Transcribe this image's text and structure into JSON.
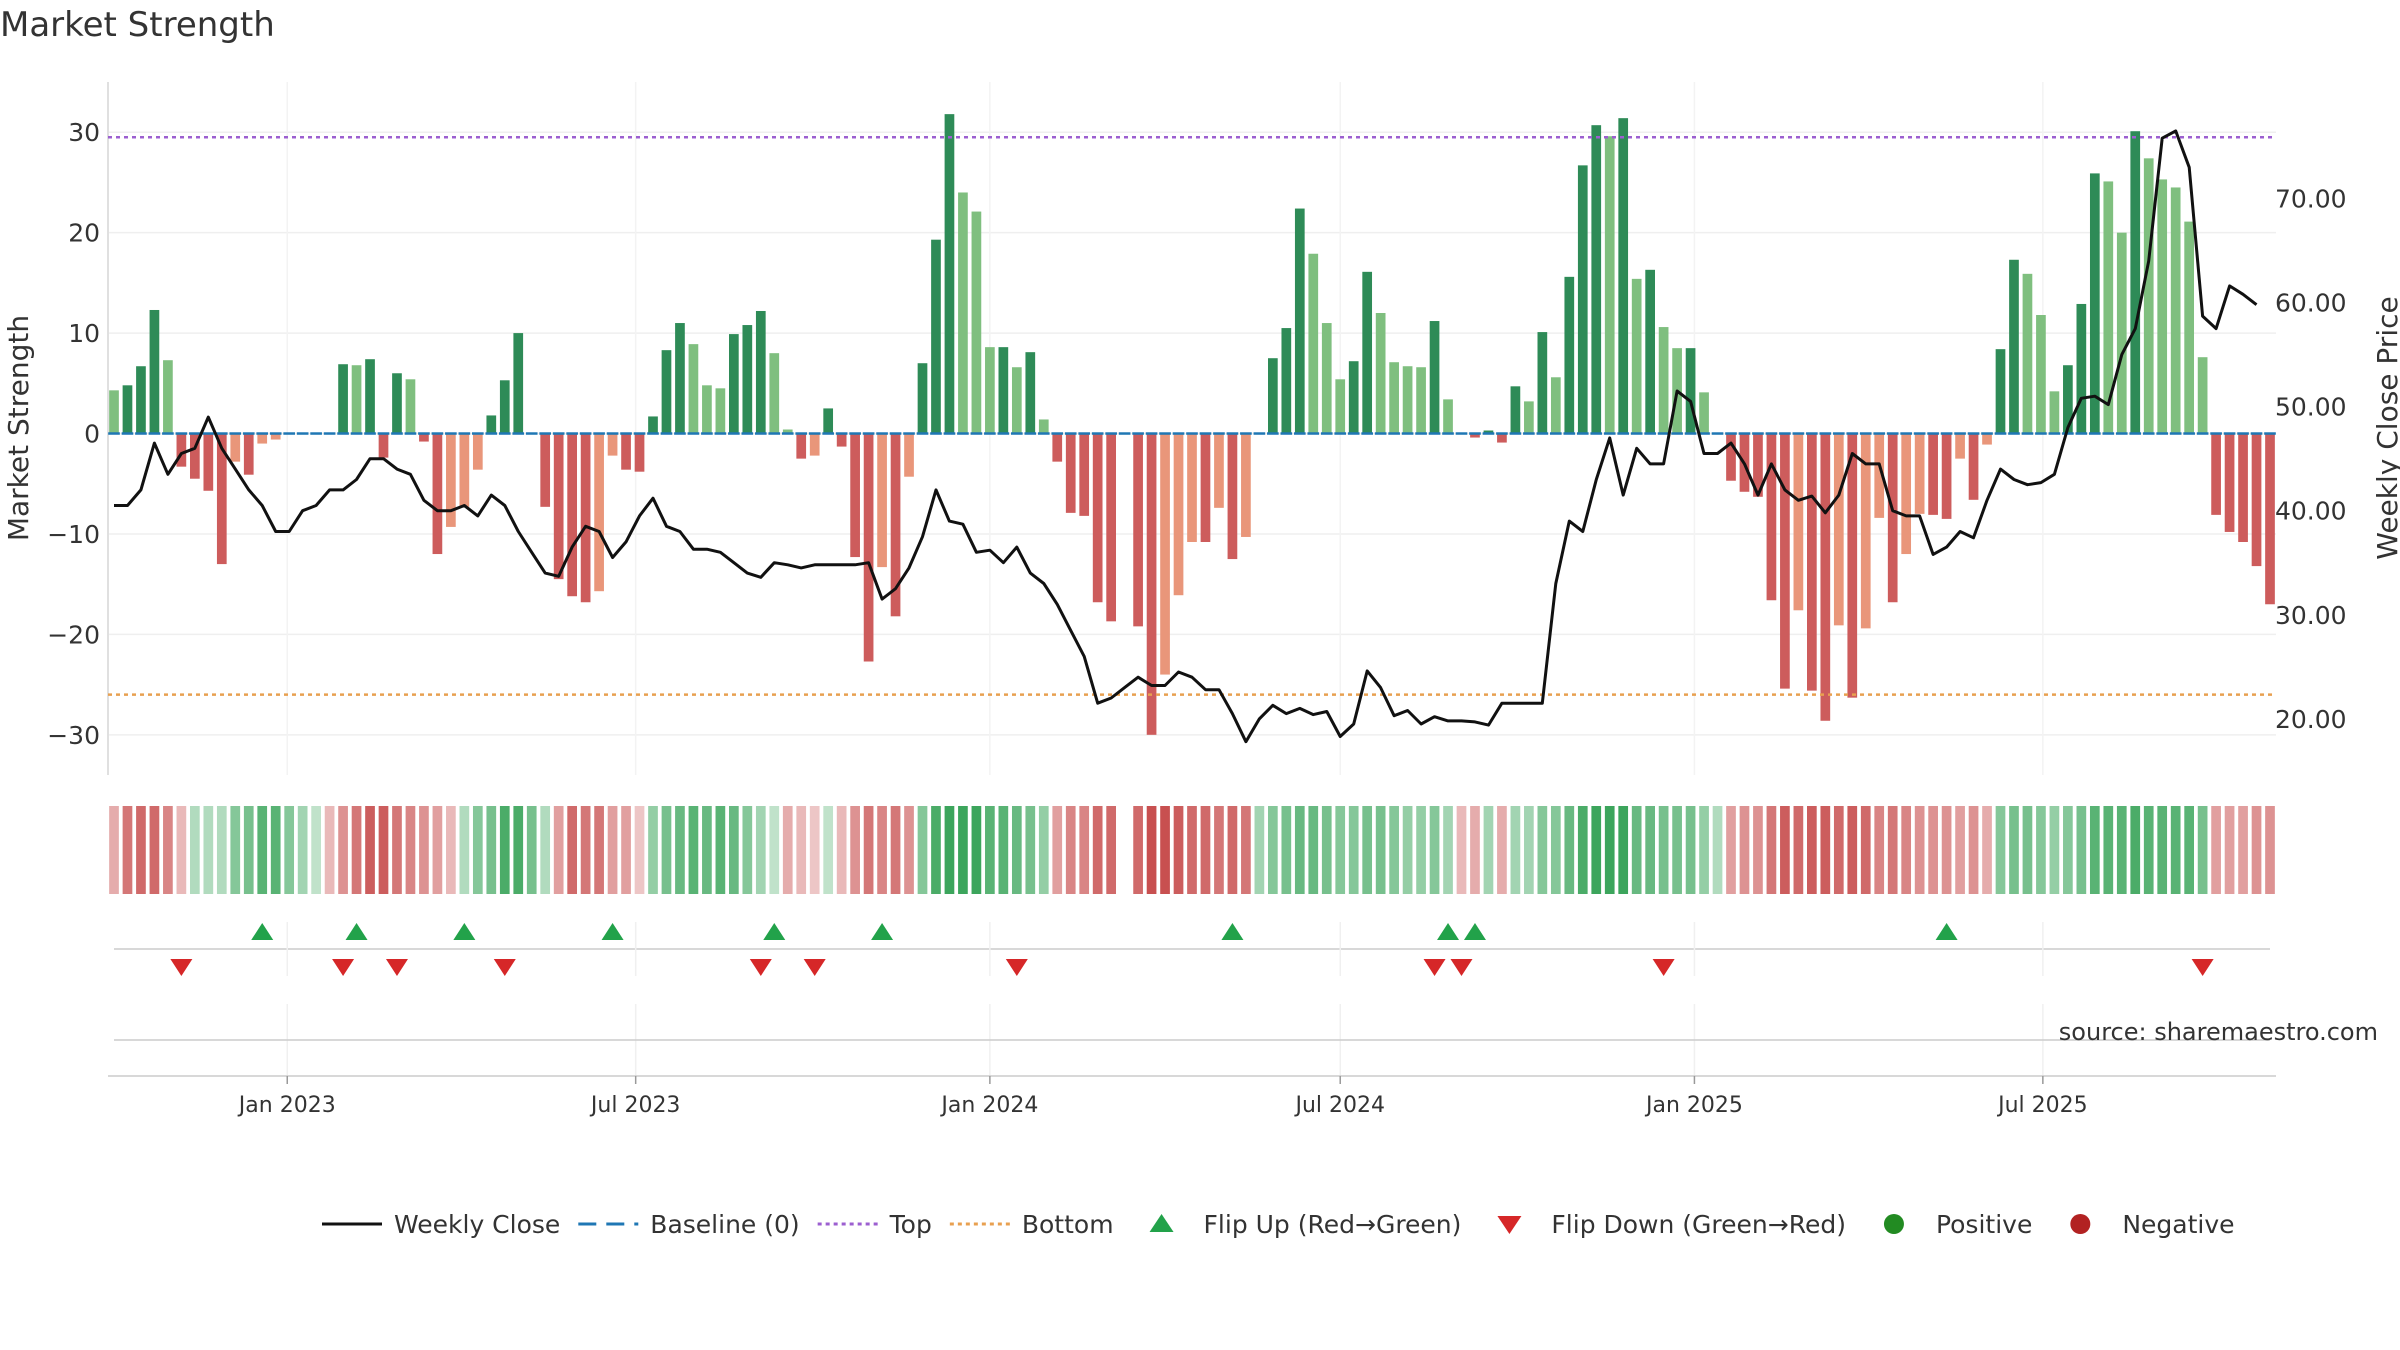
{
  "title": "Market Strength",
  "source": "source: sharemaestro.com",
  "colors": {
    "pos_strong": "#2e8b57",
    "pos_light": "#7fbf7f",
    "neg_strong": "#cd5c5c",
    "neg_light": "#e9967a",
    "top_line": "#9c5fd0",
    "bottom_line": "#e8a050",
    "baseline": "#1f77b4",
    "close": "#111111",
    "flip_up": "#22a24a",
    "flip_down": "#d62728",
    "positive": "#228b22",
    "negative": "#b22222"
  },
  "legend": [
    {
      "label": "Weekly Close",
      "kind": "line"
    },
    {
      "label": "Baseline (0)",
      "kind": "dash"
    },
    {
      "label": "Top",
      "kind": "dot-top"
    },
    {
      "label": "Bottom",
      "kind": "dot-bottom"
    },
    {
      "label": "Flip Up (Red→Green)",
      "kind": "tri-up"
    },
    {
      "label": "Flip Down (Green→Red)",
      "kind": "tri-down"
    },
    {
      "label": "Positive",
      "kind": "circle-pos"
    },
    {
      "label": "Negative",
      "kind": "circle-neg"
    }
  ],
  "chart_data": {
    "type": "bar",
    "x_start": "2022-10-03",
    "x_step_days": 7,
    "x_ticks": [
      "Jan 2023",
      "Jul 2023",
      "Jan 2024",
      "Jul 2024",
      "Jan 2025",
      "Jul 2025"
    ],
    "x_tick_dates": [
      "2023-01-01",
      "2023-07-01",
      "2024-01-01",
      "2024-07-01",
      "2025-01-01",
      "2025-07-01"
    ],
    "ylabel": "Market Strength",
    "y2label": "Weekly Close Price",
    "ylim": [
      -34,
      35
    ],
    "y_ticks": [
      30,
      20,
      10,
      0,
      -10,
      -20,
      -30
    ],
    "y_tick_labels": [
      "30",
      "20",
      "10",
      "0",
      "−10",
      "−20",
      "−30"
    ],
    "y2lim": [
      14.6,
      81.2
    ],
    "y2_ticks": [
      70,
      60,
      50,
      40,
      30,
      20
    ],
    "y2_tick_labels": [
      "70.00",
      "60.00",
      "50.00",
      "40.00",
      "30.00",
      "20.00"
    ],
    "top_level": 29.5,
    "bottom_level": -26,
    "strength": [
      4.3,
      4.8,
      6.7,
      12.3,
      7.3,
      -3.3,
      -4.5,
      -5.7,
      -13,
      -2.8,
      -4.1,
      -1,
      -0.6,
      0,
      0,
      0,
      0,
      6.9,
      6.8,
      7.4,
      -2.4,
      6,
      5.4,
      -0.8,
      -12,
      -9.3,
      -7.3,
      -3.6,
      1.8,
      5.3,
      10,
      0,
      -7.3,
      -14.5,
      -16.2,
      -16.8,
      -15.7,
      -2.2,
      -3.6,
      -3.8,
      1.7,
      8.3,
      11,
      8.9,
      4.8,
      4.5,
      9.9,
      10.8,
      12.2,
      8,
      0.4,
      -2.5,
      -2.2,
      2.5,
      -1.3,
      -12.3,
      -22.7,
      -13.3,
      -18.2,
      -4.3,
      7,
      19.3,
      31.8,
      24,
      22.1,
      8.6,
      8.6,
      6.6,
      8.1,
      1.4,
      -2.8,
      -7.9,
      -8.2,
      -16.8,
      -18.7,
      0,
      -19.2,
      -30,
      -24,
      -16.1,
      -10.8,
      -10.8,
      -7.4,
      -12.5,
      -10.3,
      0,
      7.5,
      10.5,
      22.4,
      17.9,
      11,
      5.4,
      7.2,
      16.1,
      12,
      7.1,
      6.7,
      6.6,
      11.2,
      3.4,
      0,
      -0.4,
      0.3,
      -0.9,
      4.7,
      3.2,
      10.1,
      5.6,
      15.6,
      26.7,
      30.7,
      29.6,
      31.4,
      15.4,
      16.3,
      10.6,
      8.5,
      8.5,
      4.1,
      0,
      -4.7,
      -5.8,
      -6.3,
      -16.6,
      -25.4,
      -17.6,
      -25.6,
      -28.6,
      -19.1,
      -26.3,
      -19.4,
      -8.4,
      -16.8,
      -12,
      -8,
      -8.1,
      -8.5,
      -2.5,
      -6.6,
      -1.1,
      8.4,
      17.3,
      15.9,
      11.8,
      4.2,
      6.8,
      12.9,
      25.9,
      25.1,
      20,
      30.1,
      27.4,
      25.3,
      24.5,
      21.1,
      7.6,
      -8.1,
      -9.8,
      -10.8,
      -13.2,
      -17
    ],
    "weekly_close": [
      40.5,
      40.5,
      42,
      46.5,
      43.5,
      45.5,
      46,
      49,
      46,
      44,
      42,
      40.5,
      38,
      38,
      40,
      40.5,
      42,
      42,
      43,
      45,
      45,
      44,
      43.5,
      41,
      40,
      40,
      40.5,
      39.5,
      41.5,
      40.5,
      38,
      36,
      34,
      33.7,
      36.5,
      38.5,
      38,
      35.5,
      37,
      39.5,
      41.2,
      38.5,
      38,
      36.3,
      36.3,
      36,
      35,
      34,
      33.6,
      35,
      34.8,
      34.5,
      34.8,
      34.8,
      34.8,
      34.8,
      35,
      31.5,
      32.5,
      34.5,
      37.5,
      42,
      39,
      38.7,
      36,
      36.2,
      35,
      36.5,
      34,
      33,
      31,
      28.5,
      26,
      21.5,
      22,
      23,
      24,
      23.2,
      23.2,
      24.5,
      24,
      22.8,
      22.8,
      20.5,
      17.8,
      20,
      21.3,
      20.5,
      21,
      20.4,
      20.7,
      18.3,
      19.5,
      24.6,
      23,
      20.3,
      20.8,
      19.5,
      20.2,
      19.8,
      19.8,
      19.7,
      19.4,
      21.5,
      21.5,
      21.5,
      21.5,
      33,
      39,
      38,
      43,
      47,
      41.5,
      46,
      44.5,
      44.5,
      51.5,
      50.5,
      45.5,
      45.5,
      46.5,
      44.5,
      41.5,
      44.5,
      42,
      41,
      41.4,
      39.8,
      41.5,
      45.5,
      44.5,
      44.5,
      40,
      39.5,
      39.5,
      35.8,
      36.5,
      38,
      37.4,
      41,
      44,
      43,
      42.5,
      42.7,
      43.5,
      48,
      50.8,
      51,
      50.2,
      55,
      57.5,
      64,
      75.8,
      76.5,
      73,
      58.7,
      57.5,
      61.6,
      60.8,
      59.8
    ],
    "top_bars": [
      -0.3,
      -0.7,
      -0.8,
      -0.8,
      -0.6,
      -0.2,
      0.2,
      0.2,
      0.2,
      0.5,
      0.6,
      0.8,
      0.8,
      0.5,
      0.3,
      0.1,
      -0.2,
      -0.5,
      -0.7,
      -0.9,
      -0.9,
      -0.7,
      -0.6,
      -0.5,
      -0.4,
      -0.2,
      0.2,
      0.5,
      0.6,
      0.9,
      0.9,
      0.6,
      0.2,
      -0.4,
      -0.8,
      -0.7,
      -0.7,
      -0.4,
      -0.4,
      -0.1,
      0.4,
      0.6,
      0.7,
      0.8,
      0.7,
      0.8,
      0.7,
      0.5,
      0.3,
      0.1,
      -0.3,
      -0.2,
      -0.1,
      0.1,
      -0.2,
      -0.5,
      -0.7,
      -0.6,
      -0.7,
      -0.5,
      0.5,
      0.9,
      1,
      1,
      1,
      0.8,
      0.8,
      0.7,
      0.6,
      0.4,
      -0.4,
      -0.6,
      -0.6,
      -0.8,
      -0.8,
      null,
      -0.8,
      -1,
      -1,
      -0.9,
      -0.8,
      -0.8,
      -0.7,
      -0.8,
      -0.7,
      0.3,
      0.5,
      0.6,
      0.7,
      0.7,
      0.6,
      0.5,
      0.5,
      0.6,
      0.6,
      0.5,
      0.4,
      0.4,
      0.5,
      0.3,
      -0.2,
      -0.3,
      0.3,
      -0.3,
      0.3,
      0.3,
      0.5,
      0.5,
      0.7,
      0.9,
      1,
      1,
      1,
      0.7,
      0.7,
      0.6,
      0.6,
      0.6,
      0.4,
      0.2,
      -0.4,
      -0.5,
      -0.5,
      -0.7,
      -0.9,
      -0.8,
      -0.9,
      -0.9,
      -0.8,
      -0.9,
      -0.8,
      -0.6,
      -0.7,
      -0.6,
      -0.5,
      -0.5,
      -0.5,
      -0.4,
      -0.5,
      -0.3,
      0.5,
      0.6,
      0.6,
      0.5,
      0.4,
      0.5,
      0.6,
      0.8,
      0.8,
      0.8,
      0.9,
      0.8,
      0.8,
      0.8,
      0.8,
      0.6,
      -0.4,
      -0.4,
      -0.4,
      -0.5,
      -0.5
    ],
    "flip_up_dates": [
      "2022-12-19",
      "2023-02-06",
      "2023-04-03",
      "2023-06-19",
      "2023-09-11",
      "2023-11-06",
      "2024-05-06",
      "2024-08-26",
      "2024-09-09",
      "2025-05-12"
    ],
    "flip_down_dates": [
      "2022-11-07",
      "2023-01-30",
      "2023-02-27",
      "2023-04-24",
      "2023-09-04",
      "2023-10-02",
      "2024-01-15",
      "2024-08-19",
      "2024-09-02",
      "2024-12-16",
      "2025-09-22"
    ]
  }
}
